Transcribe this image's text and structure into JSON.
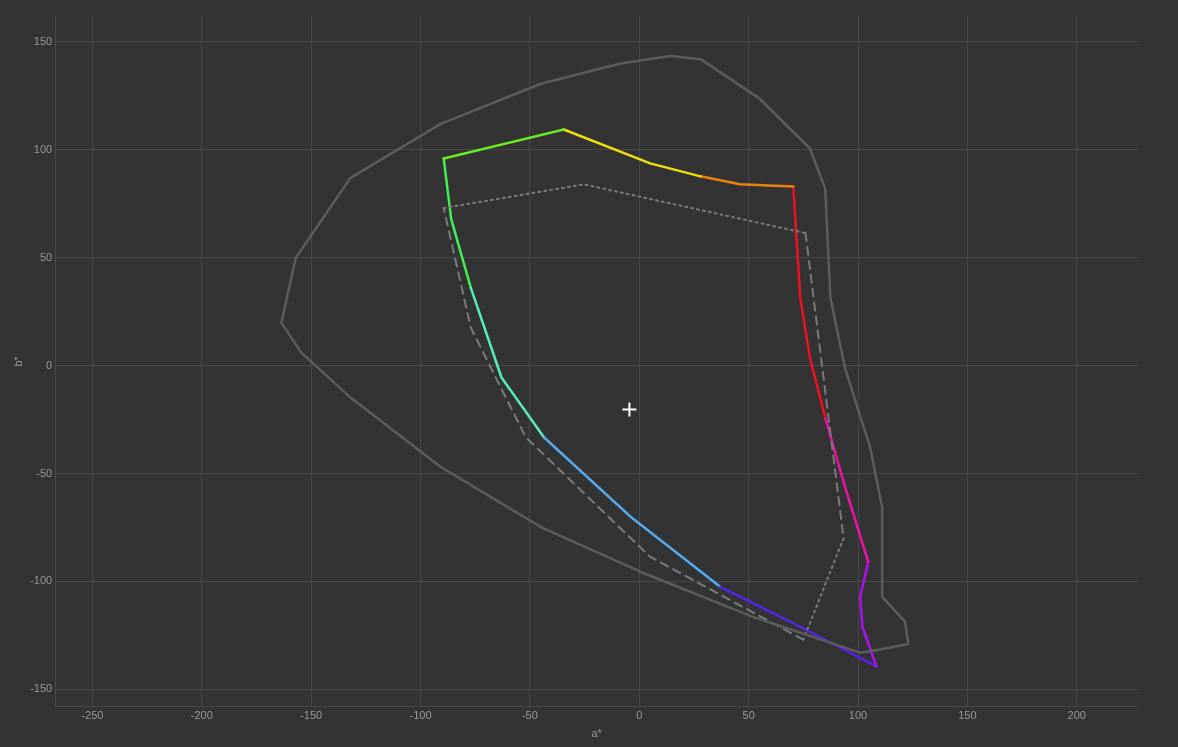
{
  "chart_data": {
    "type": "line",
    "xlabel": "a*",
    "ylabel": "b*",
    "xlim": [
      -267,
      228
    ],
    "xticks": [
      -250,
      -200,
      -150,
      -100,
      -50,
      0,
      50,
      100,
      150,
      200
    ],
    "ylim": [
      -158,
      162
    ],
    "yticks": [
      -150,
      -100,
      -50,
      0,
      50,
      100,
      150
    ],
    "grid": true,
    "legend": false,
    "series": [
      {
        "color": "#5c5c5c",
        "line_style": "solid",
        "x": [
          -163.6,
          -157,
          -132,
          -90.7,
          -45,
          -8.6,
          14.2,
          28,
          55,
          78,
          85,
          87.4,
          94,
          105.6,
          111,
          111,
          121.5,
          123,
          110,
          101
        ],
        "values": [
          19.8,
          50,
          87,
          112,
          130.6,
          140,
          143.5,
          142,
          123.7,
          100.6,
          82,
          31.4,
          -1,
          -38,
          -65.5,
          -107,
          -118.6,
          -129,
          -131.5,
          -133
        ]
      },
      {
        "color": "#5c5c5c",
        "line_style": "solid",
        "x": [
          101,
          50.8,
          0.5,
          -45,
          -90.7,
          -132,
          -154.5,
          -163.6
        ],
        "values": [
          -133,
          -116,
          -95.5,
          -74.8,
          -47,
          -14.8,
          6,
          19.8
        ]
      },
      {
        "color": "#7a7a7a",
        "line_style": "dashed",
        "x": [
          76,
          93.4
        ],
        "values": [
          61.4,
          -80
        ]
      },
      {
        "color": "#7a7a7a",
        "line_style": "dashed",
        "x": [
          75,
          5,
          -51.9,
          -77,
          -89.4
        ],
        "values": [
          -127,
          -88.6,
          -33.2,
          17.5,
          73
        ]
      },
      {
        "color": "#7a7a7a",
        "line_style": "dotted",
        "x": [
          -89.4,
          -25.4,
          76
        ],
        "values": [
          73,
          84,
          61.4
        ]
      },
      {
        "color": "#7a7a7a",
        "line_style": "dotted",
        "x": [
          93.4,
          75
        ],
        "values": [
          -80,
          -127
        ]
      },
      {
        "color": "#66ee22",
        "line_style": "solid",
        "x": [
          -89.4,
          -34.5
        ],
        "values": [
          96,
          109.4
        ]
      },
      {
        "color": "#eedd11",
        "line_style": "solid",
        "x": [
          -34.5,
          5,
          28
        ],
        "values": [
          109.4,
          93.7,
          87.7
        ]
      },
      {
        "color": "#ee8010",
        "line_style": "solid",
        "x": [
          28,
          46,
          70.4
        ],
        "values": [
          87.7,
          84,
          83
        ]
      },
      {
        "color": "#ee1122",
        "line_style": "solid",
        "x": [
          70.4,
          73.6,
          78,
          85
        ],
        "values": [
          83,
          31.4,
          3.7,
          -24
        ]
      },
      {
        "color": "#ee11aa",
        "line_style": "solid",
        "x": [
          85,
          94,
          104.7
        ],
        "values": [
          -24,
          -56,
          -91
        ]
      },
      {
        "color": "#aa11ee",
        "line_style": "solid",
        "x": [
          104.7,
          101,
          102,
          108.4
        ],
        "values": [
          -91,
          -107,
          -121,
          -139.4
        ]
      },
      {
        "color": "#5522ee",
        "line_style": "solid",
        "x": [
          108.4,
          73.6,
          37
        ],
        "values": [
          -139.4,
          -121,
          -102.5
        ]
      },
      {
        "color": "#55aaee",
        "line_style": "solid",
        "x": [
          37,
          -4,
          -43.6
        ],
        "values": [
          -102.5,
          -70,
          -33.2
        ]
      },
      {
        "color": "#55eebb",
        "line_style": "solid",
        "x": [
          -43.6,
          -63,
          -77
        ],
        "values": [
          -33.2,
          -5.5,
          36
        ]
      },
      {
        "color": "#44ee55",
        "line_style": "solid",
        "x": [
          -77,
          -86,
          -89.4
        ],
        "values": [
          36,
          68,
          96
        ]
      },
      {
        "type": "scatter",
        "color": "#ffffff",
        "marker": "cross",
        "x": [
          -4.5
        ],
        "values": [
          -20.3
        ]
      }
    ]
  }
}
